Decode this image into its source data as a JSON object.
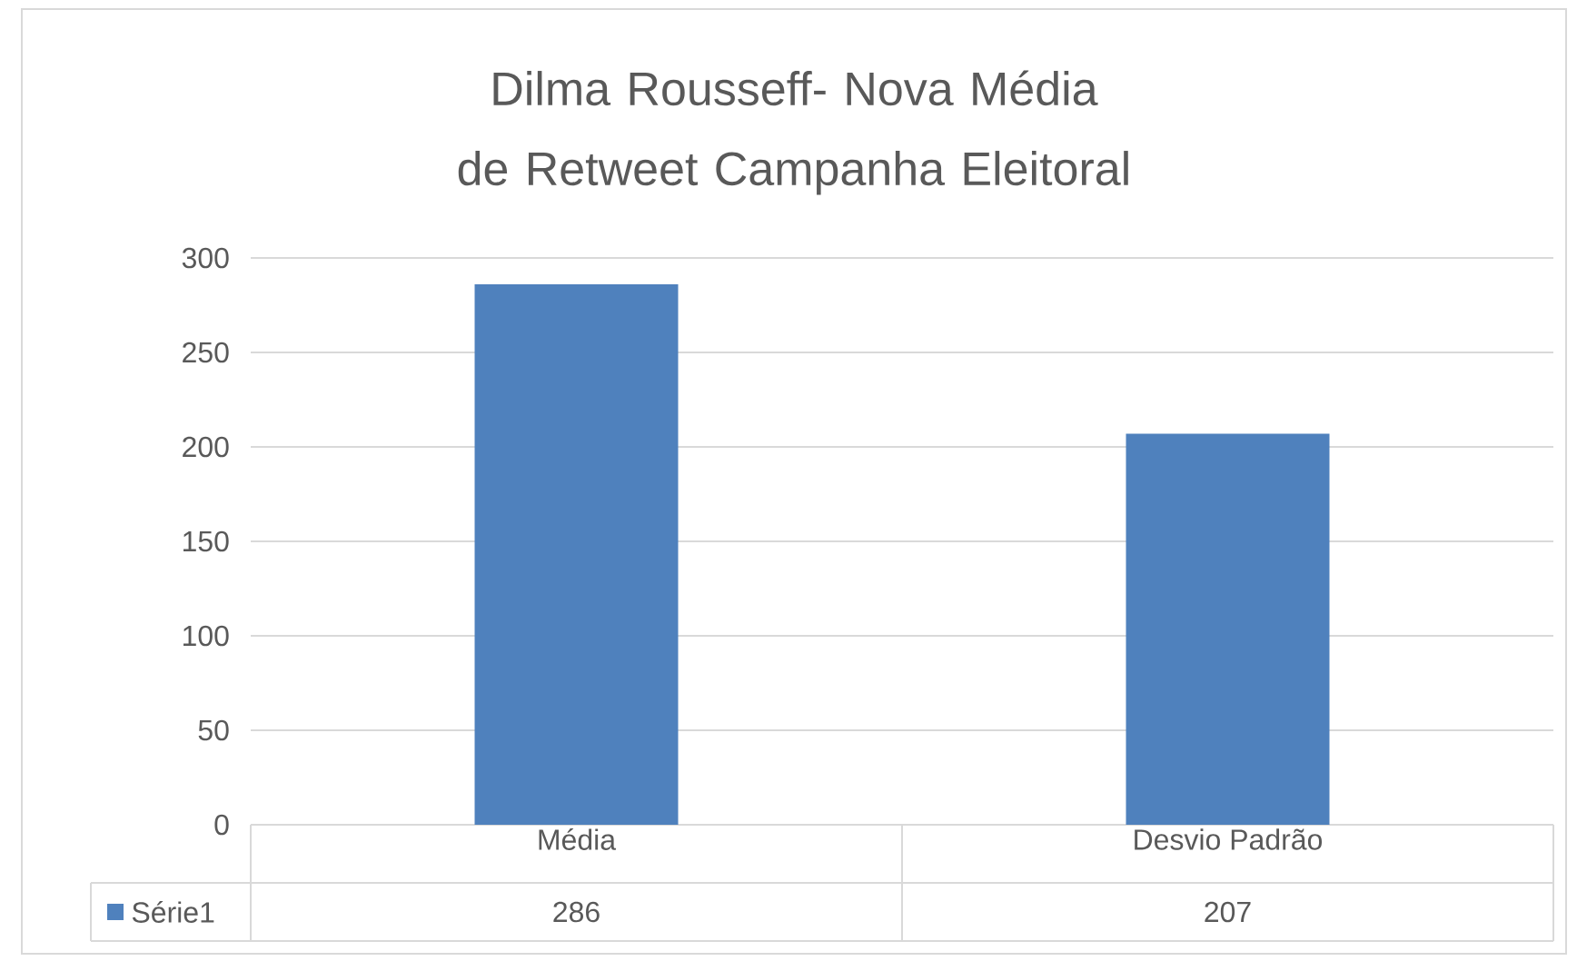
{
  "chart_data": {
    "type": "bar",
    "title": "Dilma Rousseff- Nova Média de Retweet Campanha Eleitoral",
    "categories": [
      "Média",
      "Desvio Padrão"
    ],
    "series": [
      {
        "name": "Série1",
        "color": "#4f81bd",
        "values": [
          286,
          207
        ]
      }
    ],
    "ylim": [
      0,
      300
    ],
    "yticks": [
      0,
      50,
      100,
      150,
      200,
      250,
      300
    ],
    "grid": "y",
    "legend": "bottom",
    "data_labels": true
  }
}
